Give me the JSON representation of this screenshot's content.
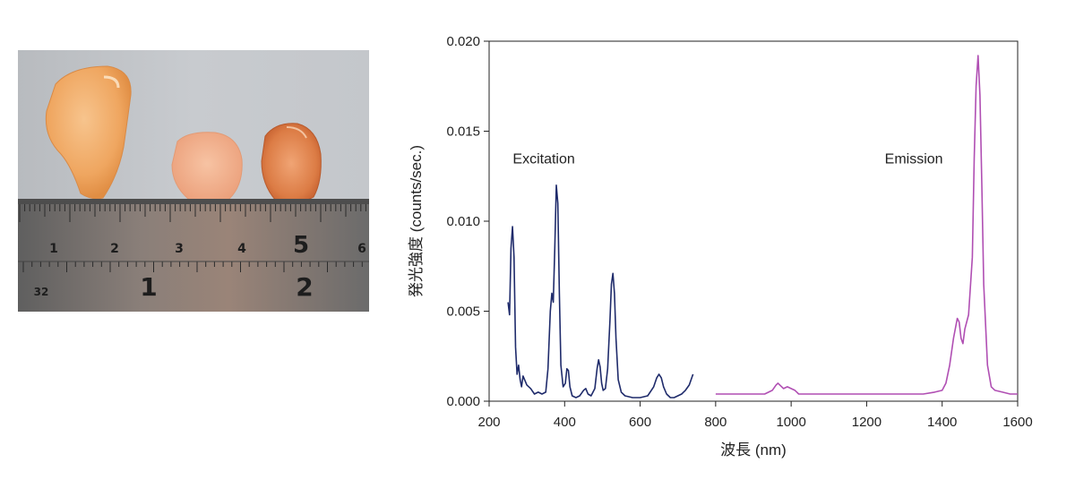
{
  "photo": {
    "ruler_labels_top": [
      "1",
      "2",
      "3",
      "4",
      "5",
      "6"
    ],
    "ruler_labels_bottom": [
      "32",
      "1",
      "2"
    ]
  },
  "chart_data": {
    "type": "line",
    "xlabel": "波長 (nm)",
    "ylabel": "発光強度 (counts/sec.)",
    "xlim": [
      200,
      1600
    ],
    "ylim": [
      0,
      0.02
    ],
    "xticks": [
      200,
      400,
      600,
      800,
      1000,
      1200,
      1400,
      1600
    ],
    "xtick_labels": [
      "200",
      "400",
      "600",
      "800",
      "1000",
      "1200",
      "1400",
      "1600"
    ],
    "yticks": [
      0,
      0.005,
      0.01,
      0.015,
      0.02
    ],
    "ytick_labels": [
      "0.000",
      "0.005",
      "0.010",
      "0.015",
      "0.020"
    ],
    "grid": false,
    "annotations": [
      {
        "text": "Excitation",
        "x": 345,
        "y": 0.0132
      },
      {
        "text": "Emission",
        "x": 1325,
        "y": 0.0132
      }
    ],
    "series": [
      {
        "color": "#1f2b6b",
        "x": [
          250,
          254,
          258,
          262,
          266,
          270,
          274,
          278,
          282,
          286,
          290,
          300,
          310,
          320,
          330,
          340,
          350,
          356,
          362,
          366,
          370,
          374,
          378,
          382,
          386,
          390,
          396,
          402,
          406,
          410,
          414,
          420,
          430,
          440,
          450,
          456,
          462,
          470,
          480,
          486,
          490,
          494,
          498,
          502,
          508,
          514,
          520,
          524,
          528,
          532,
          536,
          542,
          550,
          560,
          580,
          600,
          620,
          636,
          644,
          650,
          656,
          662,
          670,
          680,
          690,
          700,
          710,
          720,
          730,
          740
        ],
        "y": [
          0.0055,
          0.0048,
          0.0085,
          0.0097,
          0.008,
          0.003,
          0.0015,
          0.002,
          0.0012,
          0.0008,
          0.0014,
          0.0009,
          0.0007,
          0.0004,
          0.0005,
          0.0004,
          0.0005,
          0.0018,
          0.005,
          0.006,
          0.0055,
          0.0085,
          0.012,
          0.011,
          0.006,
          0.002,
          0.0008,
          0.001,
          0.0018,
          0.0017,
          0.0008,
          0.0003,
          0.0002,
          0.0003,
          0.0006,
          0.0007,
          0.0004,
          0.0003,
          0.0007,
          0.0018,
          0.0023,
          0.0019,
          0.001,
          0.0006,
          0.0007,
          0.0018,
          0.0045,
          0.0065,
          0.0071,
          0.006,
          0.0035,
          0.0012,
          0.0005,
          0.0003,
          0.0002,
          0.0002,
          0.0003,
          0.0008,
          0.0013,
          0.0015,
          0.0013,
          0.0008,
          0.0004,
          0.0002,
          0.0002,
          0.0003,
          0.0004,
          0.0006,
          0.0009,
          0.0015
        ]
      },
      {
        "color": "#b04fb3",
        "x": [
          800,
          850,
          900,
          930,
          950,
          960,
          965,
          970,
          980,
          990,
          1000,
          1010,
          1020,
          1050,
          1100,
          1150,
          1200,
          1250,
          1300,
          1350,
          1380,
          1400,
          1410,
          1420,
          1430,
          1440,
          1445,
          1450,
          1455,
          1460,
          1470,
          1480,
          1485,
          1490,
          1495,
          1500,
          1505,
          1510,
          1520,
          1530,
          1540,
          1560,
          1580,
          1600
        ],
        "y": [
          0.0004,
          0.0004,
          0.0004,
          0.0004,
          0.0006,
          0.0009,
          0.001,
          0.0009,
          0.0007,
          0.0008,
          0.0007,
          0.0006,
          0.0004,
          0.0004,
          0.0004,
          0.0004,
          0.0004,
          0.0004,
          0.0004,
          0.0004,
          0.0005,
          0.0006,
          0.001,
          0.002,
          0.0035,
          0.0046,
          0.0044,
          0.0035,
          0.0032,
          0.004,
          0.0048,
          0.008,
          0.0135,
          0.0175,
          0.0192,
          0.017,
          0.012,
          0.0065,
          0.002,
          0.0008,
          0.0006,
          0.0005,
          0.0004,
          0.0004
        ]
      }
    ]
  }
}
